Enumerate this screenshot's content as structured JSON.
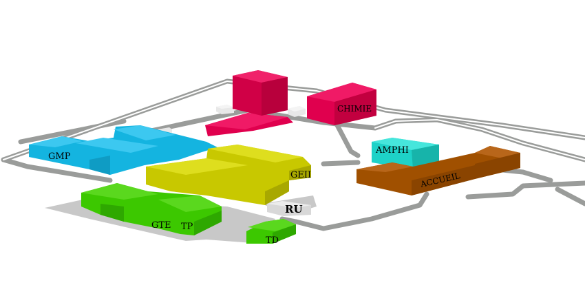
{
  "map": {
    "colors": {
      "background": "#ffffff",
      "road": "#9a9c9a",
      "plaza": "#c8c8c8",
      "chimie_block": "#e0004e",
      "gmp_block": "#14b4e0",
      "geii_block": "#c8c800",
      "gte_block": "#3cc800",
      "amphi_block": "#1ed2c8",
      "accueil_block": "#a05000",
      "ru_block": "#d8d8d8",
      "annex_block": "#e8e8e8"
    },
    "buildings": {
      "chimie": "CHIMIE",
      "gmp": "GMP",
      "geii": "GEII",
      "amphi": "AMPHI",
      "accueil": "ACCUEIL",
      "ru": "RU",
      "gte": "GTE",
      "tp": "TP",
      "td": "TD"
    }
  }
}
